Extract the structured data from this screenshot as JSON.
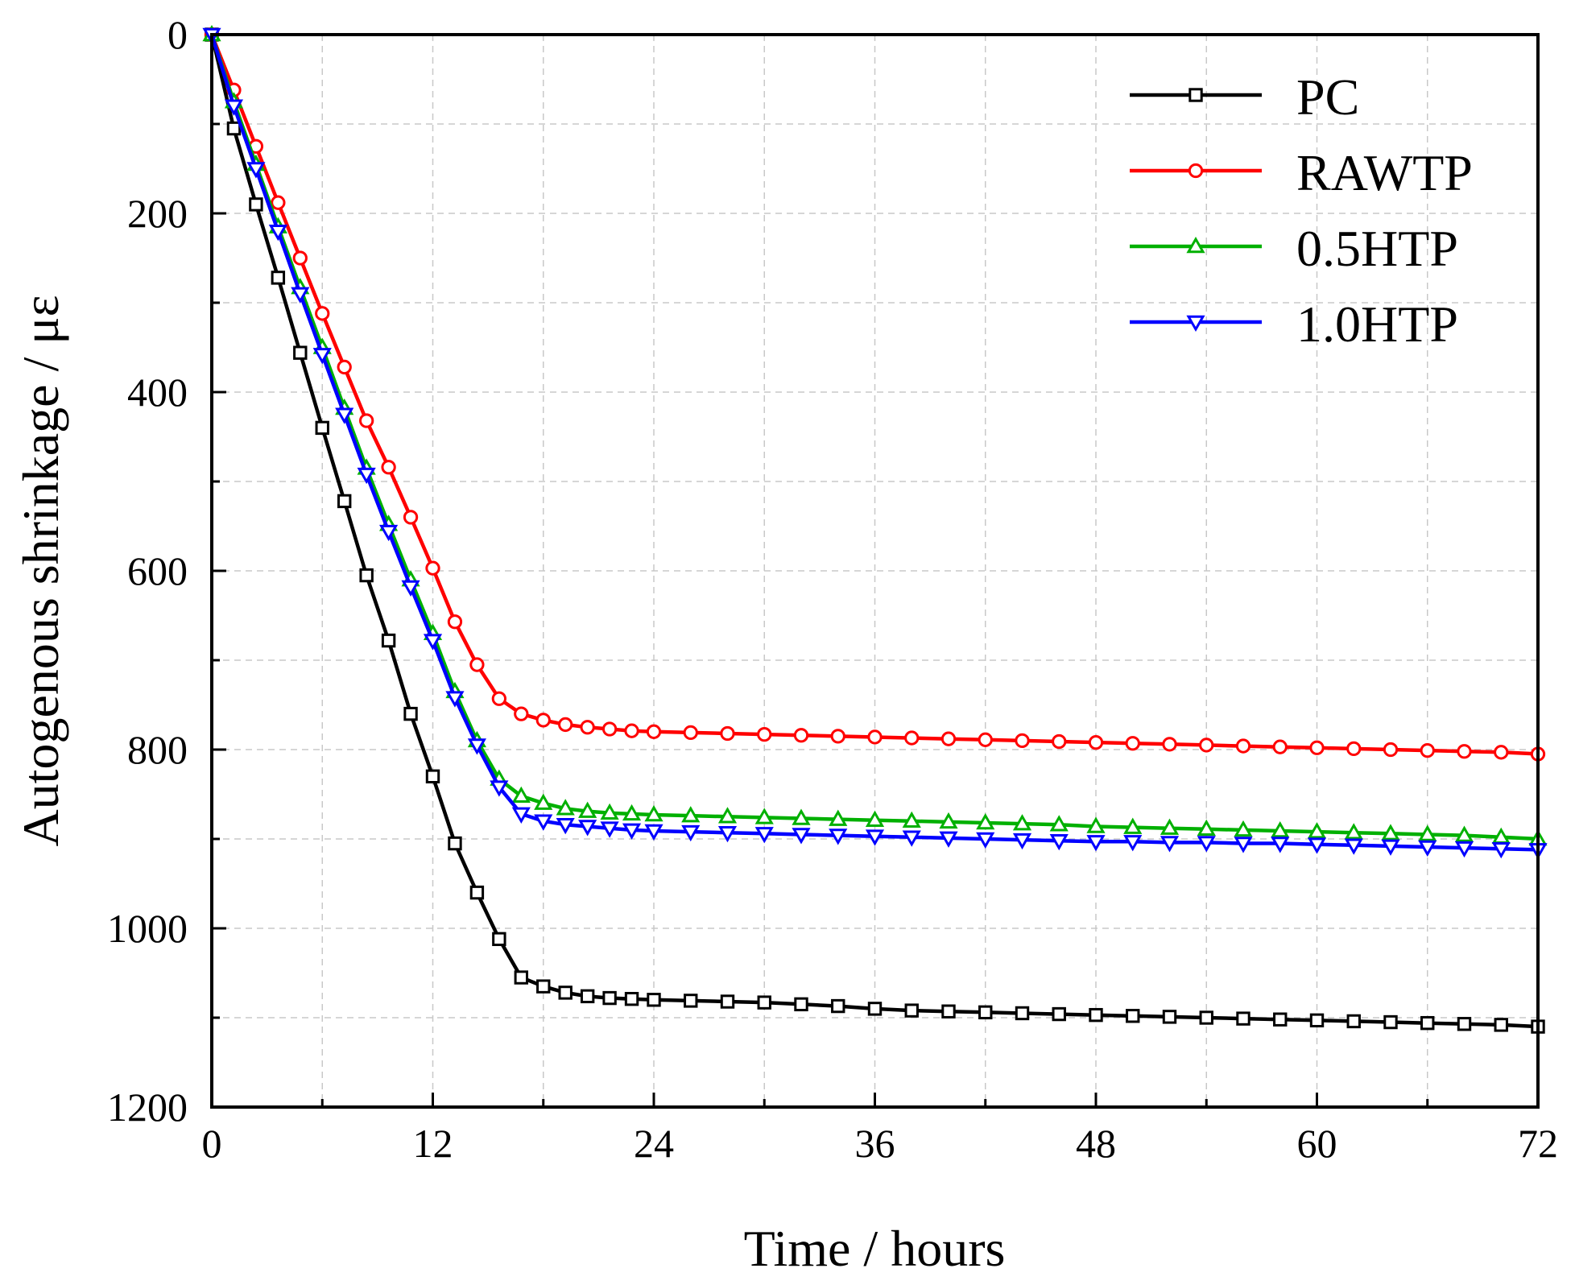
{
  "chart_data": {
    "type": "line",
    "title": "",
    "xlabel": "Time / hours",
    "ylabel": "Autogenous shrinkage / με",
    "xlim": [
      0,
      72
    ],
    "ylim": [
      0,
      1200
    ],
    "y_inverted": true,
    "x_ticks": [
      "0",
      "12",
      "24",
      "36",
      "48",
      "60",
      "72"
    ],
    "y_ticks": [
      "0",
      "200",
      "400",
      "600",
      "800",
      "1000",
      "1200"
    ],
    "grid": true,
    "legend_position": "top-right",
    "series": [
      {
        "name": "PC",
        "color": "#000000",
        "marker": "square",
        "x": [
          0,
          1.2,
          2.4,
          3.6,
          4.8,
          6,
          7.2,
          8.4,
          9.6,
          10.8,
          12,
          13.2,
          14.4,
          15.6,
          16.8,
          18,
          19.2,
          20.4,
          21.6,
          22.8,
          24,
          26,
          28,
          30,
          32,
          34,
          36,
          38,
          40,
          42,
          44,
          46,
          48,
          50,
          52,
          54,
          56,
          58,
          60,
          62,
          64,
          66,
          68,
          70,
          72
        ],
        "y": [
          0,
          105,
          190,
          272,
          356,
          440,
          522,
          605,
          678,
          760,
          830,
          905,
          960,
          1012,
          1055,
          1065,
          1072,
          1076,
          1078,
          1079,
          1080,
          1081,
          1082,
          1083,
          1085,
          1087,
          1090,
          1092,
          1093,
          1094,
          1095,
          1096,
          1097,
          1098,
          1099,
          1100,
          1101,
          1102,
          1103,
          1104,
          1105,
          1106,
          1107,
          1108,
          1110
        ]
      },
      {
        "name": "RAWTP",
        "color": "#ff0000",
        "marker": "circle",
        "x": [
          0,
          1.2,
          2.4,
          3.6,
          4.8,
          6,
          7.2,
          8.4,
          9.6,
          10.8,
          12,
          13.2,
          14.4,
          15.6,
          16.8,
          18,
          19.2,
          20.4,
          21.6,
          22.8,
          24,
          26,
          28,
          30,
          32,
          34,
          36,
          38,
          40,
          42,
          44,
          46,
          48,
          50,
          52,
          54,
          56,
          58,
          60,
          62,
          64,
          66,
          68,
          70,
          72
        ],
        "y": [
          0,
          62,
          125,
          188,
          250,
          312,
          372,
          432,
          484,
          540,
          597,
          657,
          705,
          743,
          760,
          767,
          772,
          775,
          777,
          779,
          780,
          781,
          782,
          783,
          784,
          785,
          786,
          787,
          788,
          789,
          790,
          791,
          792,
          793,
          794,
          795,
          796,
          797,
          798,
          799,
          800,
          801,
          802,
          803,
          805
        ]
      },
      {
        "name": "0.5HTP",
        "color": "#00b000",
        "marker": "triangle-up",
        "x": [
          0,
          1.2,
          2.4,
          3.6,
          4.8,
          6,
          7.2,
          8.4,
          9.6,
          10.8,
          12,
          13.2,
          14.4,
          15.6,
          16.8,
          18,
          19.2,
          20.4,
          21.6,
          22.8,
          24,
          26,
          28,
          30,
          32,
          34,
          36,
          38,
          40,
          42,
          44,
          46,
          48,
          50,
          52,
          54,
          56,
          58,
          60,
          62,
          64,
          66,
          68,
          70,
          72
        ],
        "y": [
          0,
          75,
          145,
          215,
          283,
          350,
          418,
          485,
          548,
          610,
          670,
          735,
          790,
          833,
          852,
          860,
          866,
          869,
          871,
          872,
          873,
          874,
          875,
          876,
          877,
          878,
          879,
          880,
          881,
          882,
          883,
          884,
          886,
          887,
          888,
          889,
          890,
          891,
          892,
          893,
          894,
          895,
          896,
          898,
          900
        ]
      },
      {
        "name": "1.0HTP",
        "color": "#0000ff",
        "marker": "triangle-down",
        "x": [
          0,
          1.2,
          2.4,
          3.6,
          4.8,
          6,
          7.2,
          8.4,
          9.6,
          10.8,
          12,
          13.2,
          14.4,
          15.6,
          16.8,
          18,
          19.2,
          20.4,
          21.6,
          22.8,
          24,
          26,
          28,
          30,
          32,
          34,
          36,
          38,
          40,
          42,
          44,
          46,
          48,
          50,
          52,
          54,
          56,
          58,
          60,
          62,
          64,
          66,
          68,
          70,
          72
        ],
        "y": [
          0,
          80,
          150,
          220,
          290,
          358,
          425,
          492,
          556,
          618,
          678,
          742,
          795,
          842,
          872,
          880,
          884,
          886,
          888,
          890,
          891,
          892,
          893,
          894,
          895,
          896,
          897,
          898,
          899,
          900,
          901,
          902,
          903,
          903,
          904,
          904,
          905,
          905,
          906,
          907,
          908,
          909,
          910,
          911,
          912
        ]
      }
    ]
  }
}
